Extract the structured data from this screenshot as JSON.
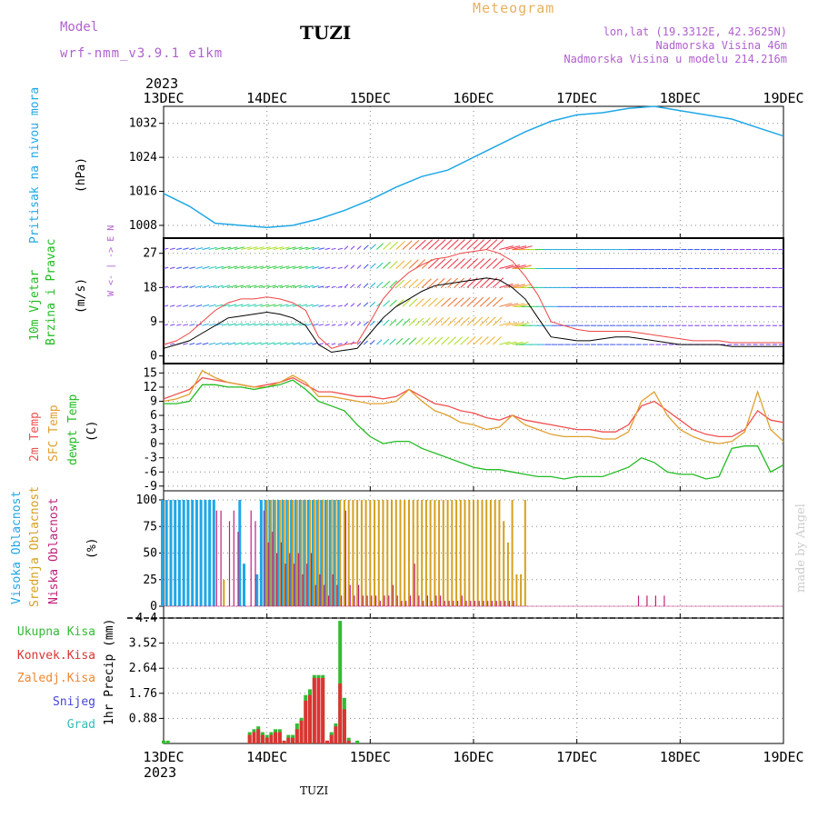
{
  "header": {
    "model_label": "Model",
    "model_name": "wrf-nmm_v3.9.1 e1km",
    "station": "TUZI",
    "meteogram_title": "Meteogram",
    "lonlat": "lon,lat (19.3312E, 42.3625N)",
    "altitude": "Nadmorska Visina 46m",
    "model_altitude": "Nadmorska Visina u modelu 214.216m",
    "year_top": "2023",
    "year_bottom": "2023",
    "footer_station": "TUZI",
    "credit": "made by Angel"
  },
  "colors": {
    "pressure": "#1fa7e6",
    "temp2m": "#f05050",
    "sfc_temp": "#e0a030",
    "dewpoint": "#22bb22",
    "cloud_high": "#1fa7e6",
    "cloud_mid": "#d4a020",
    "cloud_low": "#c0207a",
    "precip_total": "#33bb33",
    "precip_conv": "#dd3333",
    "precip_frz": "#ee8833",
    "precip_snow": "#4444dd",
    "precip_grad": "#33bbbb",
    "wind_speed": "#000000",
    "wind_gust": "#ee4444",
    "labels_purple": "#b060d0",
    "labels_orange": "#e8b060"
  },
  "chart_data": [
    {
      "type": "line",
      "id": "pressure",
      "ylabel": "(hPa)",
      "side_label": "Pritisak na nivou mora",
      "yticks": [
        1008,
        1016,
        1024,
        1032
      ],
      "ylim": [
        1005,
        1036
      ],
      "x_hours": [
        0,
        6,
        12,
        18,
        24,
        30,
        36,
        42,
        48,
        54,
        60,
        66,
        72,
        78,
        84,
        90,
        96,
        102,
        108,
        114,
        120,
        126,
        132,
        138,
        144
      ],
      "values": [
        1015.5,
        1012.5,
        1008.5,
        1008,
        1007.5,
        1008,
        1009.5,
        1011.5,
        1014,
        1017,
        1019.5,
        1021,
        1024,
        1027,
        1030,
        1032.5,
        1034,
        1034.5,
        1035.5,
        1036,
        1035,
        1034,
        1033,
        1031,
        1029
      ]
    },
    {
      "type": "line",
      "id": "wind",
      "ylabel": "(m/s)",
      "side_label": [
        "10m Vjetar",
        "Brzina i Pravac"
      ],
      "compass": "W <- | -> E  N",
      "yticks": [
        0,
        9,
        18,
        27
      ],
      "ylim": [
        -2,
        31
      ],
      "x_hours": [
        0,
        3,
        6,
        9,
        12,
        15,
        18,
        21,
        24,
        27,
        30,
        33,
        36,
        39,
        42,
        45,
        48,
        51,
        54,
        57,
        60,
        63,
        66,
        69,
        72,
        75,
        78,
        81,
        84,
        87,
        90,
        93,
        96,
        99,
        102,
        105,
        108,
        111,
        114,
        117,
        120,
        123,
        126,
        129,
        132,
        135,
        138,
        141,
        144
      ],
      "series": [
        {
          "name": "wind speed",
          "values": [
            2,
            3,
            4,
            6,
            8,
            10,
            10.5,
            11,
            11.5,
            11,
            10,
            8,
            3,
            1,
            1.5,
            2,
            6,
            10,
            13,
            15,
            17,
            18.5,
            19,
            19.5,
            20,
            20.5,
            20,
            18,
            15,
            10,
            5,
            4.5,
            4,
            4,
            4.5,
            5,
            5,
            4.5,
            4,
            3.5,
            3,
            3,
            3,
            3,
            2.5,
            2.5,
            2.5,
            2.5,
            2.5
          ]
        },
        {
          "name": "gust",
          "values": [
            3,
            4,
            6,
            9,
            12,
            14,
            15,
            15,
            15.5,
            15,
            14,
            12,
            5,
            2,
            3,
            3.5,
            9,
            15,
            19,
            22,
            24,
            25.5,
            26,
            27,
            27.5,
            28,
            27,
            25,
            21,
            16,
            9,
            8,
            7,
            6.5,
            6.5,
            6.5,
            6.5,
            6,
            5.5,
            5,
            4.5,
            4,
            4,
            4,
            3.5,
            3.5,
            3.5,
            3.5,
            3.5
          ]
        }
      ]
    },
    {
      "type": "line",
      "id": "temperature",
      "ylabel": "(C)",
      "side_label": [
        "2m Temp",
        "SFC Temp",
        "dewpt Temp"
      ],
      "yticks": [
        -9,
        -6,
        -3,
        0,
        3,
        6,
        9,
        12,
        15
      ],
      "ylim": [
        -10,
        17
      ],
      "x_hours": [
        0,
        3,
        6,
        9,
        12,
        15,
        18,
        21,
        24,
        27,
        30,
        33,
        36,
        39,
        42,
        45,
        48,
        51,
        54,
        57,
        60,
        63,
        66,
        69,
        72,
        75,
        78,
        81,
        84,
        87,
        90,
        93,
        96,
        99,
        102,
        105,
        108,
        111,
        114,
        117,
        120,
        123,
        126,
        129,
        132,
        135,
        138,
        141,
        144
      ],
      "series": [
        {
          "name": "2m Temp",
          "values": [
            9.5,
            10.5,
            11.5,
            14,
            13.5,
            13,
            12.5,
            12,
            12.5,
            13,
            14,
            12.5,
            11,
            11,
            10.5,
            10,
            10,
            9.5,
            10,
            11.5,
            10,
            8.5,
            8,
            7,
            6.5,
            5.5,
            5,
            6,
            5,
            4.5,
            4,
            3.5,
            3,
            3,
            2.5,
            2.5,
            4,
            8,
            9,
            7,
            5,
            3,
            2,
            1.5,
            1.5,
            3,
            7,
            5,
            4.5
          ]
        },
        {
          "name": "SFC Temp",
          "values": [
            9,
            9.5,
            10.5,
            15.5,
            14,
            13,
            12.5,
            12,
            12,
            13,
            14.5,
            13,
            10,
            10,
            9.5,
            9,
            8.5,
            8.5,
            9,
            11.5,
            9,
            7,
            6,
            4.5,
            4,
            3,
            3.5,
            6,
            4,
            3,
            2,
            1.5,
            1.5,
            1.5,
            1,
            1,
            2.5,
            9,
            11,
            6,
            3,
            1.5,
            0.5,
            0,
            0.5,
            2.5,
            11,
            3,
            0.5
          ]
        },
        {
          "name": "dewpt Temp",
          "values": [
            8.5,
            8.5,
            9,
            12.5,
            12.5,
            12,
            12,
            11.5,
            12,
            12.5,
            13.5,
            11.5,
            9,
            8,
            7,
            4,
            1.5,
            0,
            0.5,
            0.5,
            -1,
            -2,
            -3,
            -4,
            -5,
            -5.5,
            -5.5,
            -6,
            -6.5,
            -7,
            -7,
            -7.5,
            -7,
            -7,
            -7,
            -6,
            -5,
            -3,
            -4,
            -6,
            -6.5,
            -6.5,
            -7.5,
            -7,
            -1,
            -0.5,
            -0.5,
            -6,
            -4.5
          ]
        }
      ]
    },
    {
      "type": "bar",
      "id": "clouds",
      "ylabel": "(%)",
      "side_label": [
        "Visoka Oblacnost",
        "Srednja Oblacnost",
        "Niska Oblacnost"
      ],
      "yticks": [
        0,
        25,
        50,
        75,
        100
      ],
      "ylim": [
        0,
        100
      ],
      "x_hours": [
        0,
        1,
        2,
        3,
        4,
        5,
        6,
        7,
        8,
        9,
        10,
        11,
        12,
        13,
        14,
        15,
        16,
        17,
        18,
        19,
        20,
        21,
        22,
        23,
        24,
        25,
        26,
        27,
        28,
        29,
        30,
        31,
        32,
        33,
        34,
        35,
        36,
        37,
        38,
        39,
        40,
        41,
        42,
        43,
        44,
        45,
        46,
        47,
        48,
        49,
        50,
        51,
        52,
        53,
        54,
        55,
        56,
        57,
        58,
        59,
        60,
        61,
        62,
        63,
        64,
        65,
        66,
        67,
        68,
        69,
        70,
        71,
        72,
        73,
        74,
        75,
        76,
        77,
        78,
        79,
        80,
        81,
        82,
        83,
        84,
        90,
        100,
        110,
        112,
        114,
        116,
        130
      ],
      "series": [
        {
          "name": "Visoka Oblacnost",
          "values": [
            100,
            100,
            100,
            100,
            100,
            100,
            100,
            100,
            100,
            100,
            100,
            100,
            100,
            0,
            0,
            0,
            0,
            0,
            100,
            40,
            0,
            0,
            30,
            100,
            100,
            100,
            100,
            100,
            100,
            100,
            100,
            100,
            100,
            100,
            100,
            100,
            100,
            100,
            100,
            100,
            100,
            100,
            0,
            0,
            0,
            0,
            0,
            0,
            0,
            0,
            0,
            0,
            0,
            0,
            0,
            0,
            0,
            0,
            0,
            0,
            0,
            0,
            0,
            0,
            0,
            0,
            0,
            0,
            0,
            0,
            0,
            0,
            0,
            0,
            0,
            0,
            0,
            0,
            0,
            0,
            0,
            0,
            0,
            0,
            0,
            0,
            0,
            0,
            0,
            0,
            0,
            0
          ]
        },
        {
          "name": "Srednja Oblacnost",
          "values": [
            0,
            0,
            0,
            0,
            0,
            0,
            0,
            0,
            0,
            0,
            0,
            0,
            0,
            0,
            25,
            0,
            0,
            0,
            0,
            0,
            0,
            0,
            0,
            0,
            100,
            100,
            100,
            100,
            100,
            100,
            100,
            100,
            100,
            100,
            100,
            100,
            100,
            100,
            100,
            100,
            100,
            100,
            100,
            100,
            100,
            100,
            100,
            100,
            100,
            100,
            100,
            100,
            100,
            100,
            100,
            100,
            100,
            100,
            100,
            100,
            100,
            100,
            100,
            100,
            100,
            100,
            100,
            100,
            100,
            100,
            100,
            100,
            100,
            100,
            100,
            100,
            100,
            100,
            100,
            80,
            60,
            100,
            30,
            30,
            100,
            0,
            0,
            0,
            0,
            0,
            0,
            0
          ]
        },
        {
          "name": "Niska Oblacnost",
          "values": [
            0,
            0,
            0,
            0,
            0,
            0,
            0,
            0,
            0,
            0,
            0,
            0,
            90,
            90,
            0,
            80,
            90,
            70,
            0,
            0,
            90,
            80,
            0,
            90,
            60,
            70,
            50,
            60,
            40,
            50,
            40,
            50,
            30,
            40,
            50,
            20,
            30,
            20,
            10,
            30,
            20,
            10,
            90,
            20,
            10,
            20,
            10,
            10,
            10,
            10,
            5,
            10,
            10,
            20,
            10,
            5,
            5,
            10,
            40,
            10,
            5,
            10,
            5,
            10,
            10,
            5,
            5,
            5,
            5,
            10,
            5,
            5,
            5,
            5,
            5,
            5,
            5,
            5,
            5,
            5,
            5,
            5,
            0,
            0,
            0,
            0,
            0,
            10,
            10,
            10,
            10,
            0
          ]
        }
      ]
    },
    {
      "type": "bar",
      "id": "precipitation",
      "ylabel": "1hr Precip (mm)",
      "legend": [
        "Ukupna Kisa",
        "Konvek.Kisa",
        "Zaledj.Kisa",
        "Snijeg",
        "Grad"
      ],
      "yticks": [
        0.88,
        1.76,
        2.64,
        3.52,
        4.4
      ],
      "ylim": [
        0,
        4.4
      ],
      "x_hours": [
        0,
        1,
        20,
        21,
        22,
        23,
        24,
        25,
        26,
        27,
        28,
        29,
        30,
        31,
        32,
        33,
        34,
        35,
        36,
        37,
        38,
        39,
        40,
        41,
        42,
        43,
        44,
        45
      ],
      "series": [
        {
          "name": "Ukupna Kisa",
          "values": [
            0.1,
            0.1,
            0.4,
            0.5,
            0.6,
            0.4,
            0.3,
            0.4,
            0.5,
            0.5,
            0.1,
            0.3,
            0.3,
            0.7,
            0.9,
            1.7,
            1.9,
            2.4,
            2.4,
            2.4,
            0.1,
            0.4,
            0.7,
            4.3,
            1.6,
            0.2,
            0,
            0.1
          ]
        },
        {
          "name": "Konvek.Kisa",
          "values": [
            0,
            0,
            0.3,
            0.4,
            0.5,
            0.3,
            0.2,
            0.3,
            0.4,
            0.4,
            0.1,
            0.2,
            0.2,
            0.5,
            0.8,
            1.5,
            1.7,
            2.3,
            2.3,
            2.3,
            0.1,
            0.3,
            0.6,
            2.1,
            1.2,
            0.1,
            0,
            0
          ]
        }
      ]
    }
  ],
  "x_axis": {
    "start_label": "13DEC",
    "ticks": [
      "13DEC",
      "14DEC",
      "15DEC",
      "16DEC",
      "17DEC",
      "18DEC",
      "19DEC"
    ],
    "range_hours": [
      0,
      144
    ]
  }
}
